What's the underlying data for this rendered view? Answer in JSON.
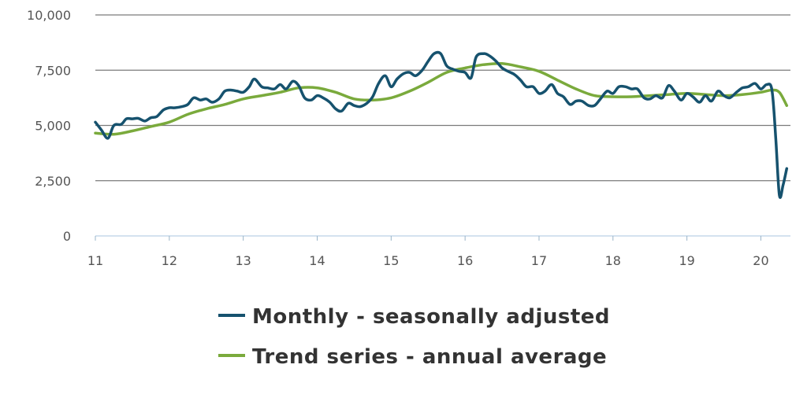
{
  "chart_data": {
    "type": "line",
    "title": "",
    "xlabel": "",
    "ylabel": "",
    "xlim": [
      11,
      20.4
    ],
    "ylim": [
      0,
      10000
    ],
    "yticks": [
      0,
      2500,
      5000,
      7500,
      10000
    ],
    "ytick_labels": [
      "0",
      "2,500",
      "5,000",
      "7,500",
      "10,000"
    ],
    "xticks": [
      11,
      12,
      13,
      14,
      15,
      16,
      17,
      18,
      19,
      20
    ],
    "xtick_labels": [
      "11",
      "12",
      "13",
      "14",
      "15",
      "16",
      "17",
      "18",
      "19",
      "20"
    ],
    "grid": true,
    "legend_position": "bottom-center",
    "series": [
      {
        "name": "Monthly - seasonally adjusted",
        "color": "#16526e",
        "points": [
          [
            11.0,
            5150
          ],
          [
            11.08,
            4800
          ],
          [
            11.17,
            4420
          ],
          [
            11.25,
            5000
          ],
          [
            11.35,
            5050
          ],
          [
            11.42,
            5300
          ],
          [
            11.5,
            5300
          ],
          [
            11.58,
            5320
          ],
          [
            11.67,
            5200
          ],
          [
            11.75,
            5350
          ],
          [
            11.83,
            5400
          ],
          [
            11.92,
            5700
          ],
          [
            12.0,
            5800
          ],
          [
            12.08,
            5800
          ],
          [
            12.17,
            5850
          ],
          [
            12.25,
            5950
          ],
          [
            12.33,
            6250
          ],
          [
            12.42,
            6150
          ],
          [
            12.5,
            6200
          ],
          [
            12.58,
            6050
          ],
          [
            12.67,
            6200
          ],
          [
            12.75,
            6550
          ],
          [
            12.83,
            6600
          ],
          [
            12.92,
            6550
          ],
          [
            13.0,
            6500
          ],
          [
            13.08,
            6750
          ],
          [
            13.15,
            7100
          ],
          [
            13.25,
            6750
          ],
          [
            13.33,
            6700
          ],
          [
            13.42,
            6650
          ],
          [
            13.5,
            6850
          ],
          [
            13.58,
            6650
          ],
          [
            13.67,
            7000
          ],
          [
            13.75,
            6800
          ],
          [
            13.83,
            6250
          ],
          [
            13.92,
            6150
          ],
          [
            14.0,
            6350
          ],
          [
            14.08,
            6250
          ],
          [
            14.17,
            6050
          ],
          [
            14.25,
            5750
          ],
          [
            14.33,
            5650
          ],
          [
            14.42,
            6000
          ],
          [
            14.5,
            5900
          ],
          [
            14.58,
            5850
          ],
          [
            14.67,
            6000
          ],
          [
            14.75,
            6300
          ],
          [
            14.83,
            6900
          ],
          [
            14.92,
            7250
          ],
          [
            15.0,
            6750
          ],
          [
            15.08,
            7100
          ],
          [
            15.17,
            7350
          ],
          [
            15.25,
            7400
          ],
          [
            15.33,
            7250
          ],
          [
            15.42,
            7500
          ],
          [
            15.5,
            7900
          ],
          [
            15.58,
            8250
          ],
          [
            15.67,
            8250
          ],
          [
            15.75,
            7700
          ],
          [
            15.83,
            7550
          ],
          [
            15.92,
            7450
          ],
          [
            16.0,
            7400
          ],
          [
            16.08,
            7150
          ],
          [
            16.15,
            8100
          ],
          [
            16.25,
            8250
          ],
          [
            16.33,
            8150
          ],
          [
            16.42,
            7900
          ],
          [
            16.5,
            7600
          ],
          [
            16.58,
            7450
          ],
          [
            16.67,
            7300
          ],
          [
            16.75,
            7050
          ],
          [
            16.83,
            6750
          ],
          [
            16.92,
            6750
          ],
          [
            17.0,
            6450
          ],
          [
            17.08,
            6550
          ],
          [
            17.17,
            6850
          ],
          [
            17.25,
            6450
          ],
          [
            17.33,
            6300
          ],
          [
            17.42,
            5950
          ],
          [
            17.5,
            6100
          ],
          [
            17.58,
            6100
          ],
          [
            17.67,
            5900
          ],
          [
            17.75,
            5900
          ],
          [
            17.83,
            6200
          ],
          [
            17.92,
            6550
          ],
          [
            18.0,
            6450
          ],
          [
            18.08,
            6750
          ],
          [
            18.17,
            6750
          ],
          [
            18.25,
            6650
          ],
          [
            18.33,
            6650
          ],
          [
            18.42,
            6250
          ],
          [
            18.5,
            6200
          ],
          [
            18.58,
            6350
          ],
          [
            18.67,
            6250
          ],
          [
            18.75,
            6800
          ],
          [
            18.83,
            6550
          ],
          [
            18.92,
            6150
          ],
          [
            19.0,
            6450
          ],
          [
            19.08,
            6300
          ],
          [
            19.17,
            6050
          ],
          [
            19.25,
            6350
          ],
          [
            19.33,
            6100
          ],
          [
            19.42,
            6550
          ],
          [
            19.5,
            6350
          ],
          [
            19.58,
            6250
          ],
          [
            19.67,
            6500
          ],
          [
            19.75,
            6700
          ],
          [
            19.83,
            6750
          ],
          [
            19.92,
            6900
          ],
          [
            20.0,
            6650
          ],
          [
            20.08,
            6850
          ],
          [
            20.15,
            6600
          ],
          [
            20.2,
            4500
          ],
          [
            20.25,
            1850
          ],
          [
            20.3,
            2300
          ],
          [
            20.35,
            3050
          ]
        ]
      },
      {
        "name": "Trend series - annual average",
        "color": "#7aaa3c",
        "points": [
          [
            11.0,
            4650
          ],
          [
            11.25,
            4600
          ],
          [
            11.5,
            4750
          ],
          [
            11.75,
            4950
          ],
          [
            12.0,
            5150
          ],
          [
            12.25,
            5500
          ],
          [
            12.5,
            5750
          ],
          [
            12.75,
            5950
          ],
          [
            13.0,
            6200
          ],
          [
            13.25,
            6350
          ],
          [
            13.5,
            6500
          ],
          [
            13.75,
            6700
          ],
          [
            14.0,
            6700
          ],
          [
            14.25,
            6500
          ],
          [
            14.5,
            6200
          ],
          [
            14.75,
            6150
          ],
          [
            15.0,
            6250
          ],
          [
            15.25,
            6550
          ],
          [
            15.5,
            6950
          ],
          [
            15.75,
            7400
          ],
          [
            16.0,
            7600
          ],
          [
            16.25,
            7750
          ],
          [
            16.5,
            7800
          ],
          [
            16.75,
            7650
          ],
          [
            17.0,
            7450
          ],
          [
            17.25,
            7050
          ],
          [
            17.5,
            6650
          ],
          [
            17.75,
            6350
          ],
          [
            18.0,
            6300
          ],
          [
            18.25,
            6300
          ],
          [
            18.5,
            6350
          ],
          [
            18.75,
            6400
          ],
          [
            19.0,
            6450
          ],
          [
            19.25,
            6400
          ],
          [
            19.5,
            6350
          ],
          [
            19.75,
            6400
          ],
          [
            20.0,
            6500
          ],
          [
            20.15,
            6600
          ],
          [
            20.25,
            6500
          ],
          [
            20.35,
            5900
          ]
        ]
      }
    ]
  }
}
